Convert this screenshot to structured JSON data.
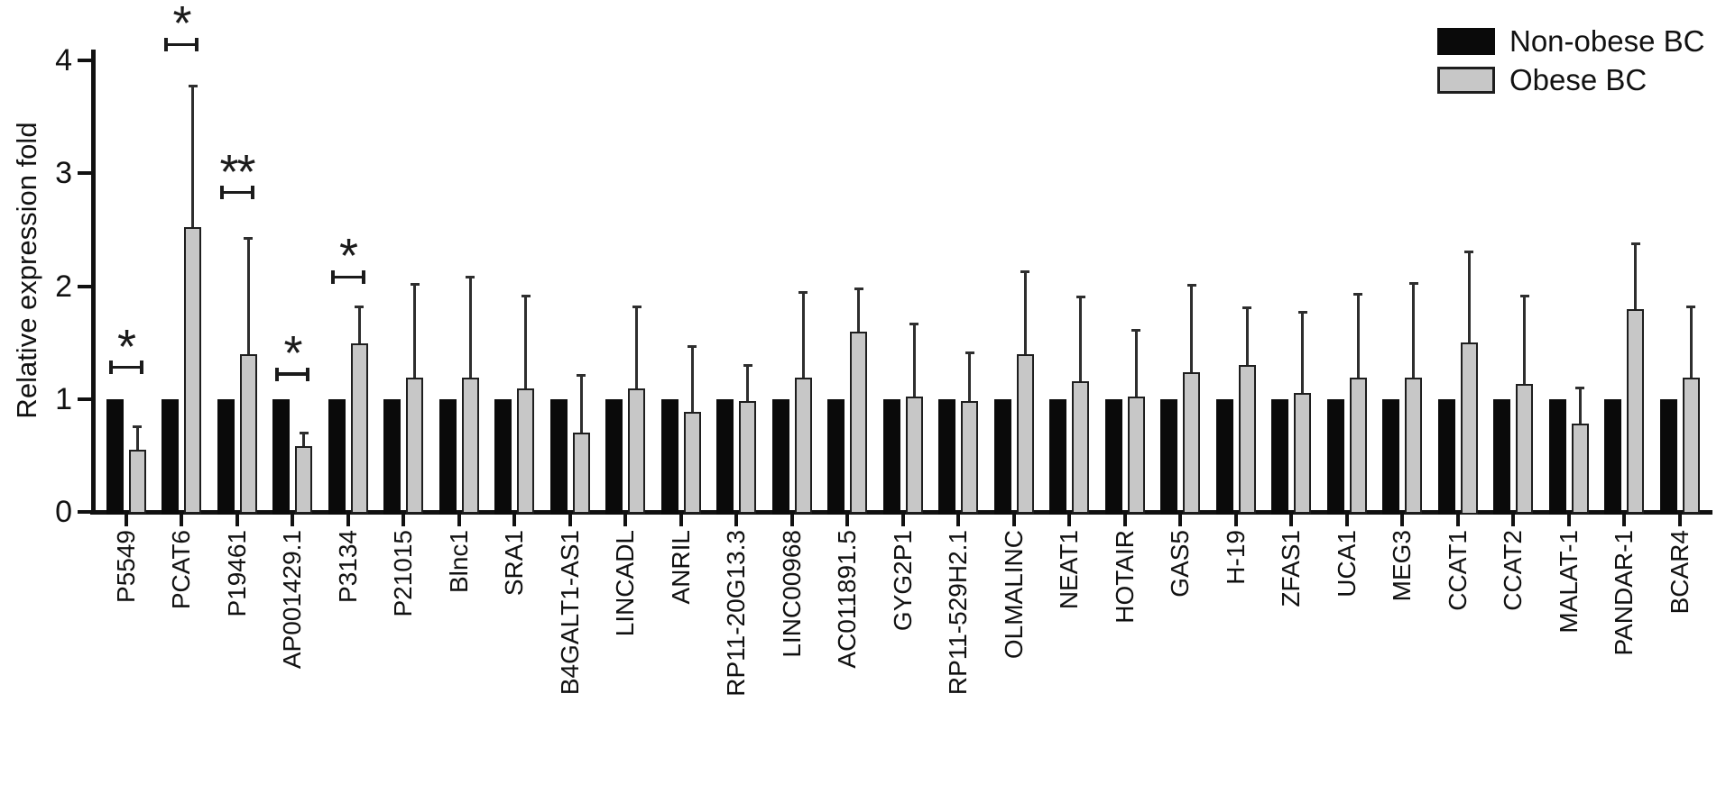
{
  "legend": {
    "items": [
      {
        "label": "Non-obese BC",
        "swatch_fill": "#0a0a0a",
        "swatch_border": "#0a0a0a"
      },
      {
        "label": "Obese BC",
        "swatch_fill": "#c7c7c7",
        "swatch_border": "#1e1e1e"
      }
    ]
  },
  "chart_data": {
    "type": "bar",
    "title": "",
    "xlabel": "",
    "ylabel": "Relative expression fold",
    "ylim": [
      0,
      4
    ],
    "y_ticks": [
      0,
      1,
      2,
      3,
      4
    ],
    "grid": false,
    "legend_position": "top-right",
    "error_bars": "upper only, on Obese BC series",
    "categories": [
      "P5549",
      "PCAT6",
      "P19461",
      "AP001429.1",
      "P3134",
      "P21015",
      "Blnc1",
      "SRA1",
      "B4GALT1-AS1",
      "LINCADL",
      "ANRIL",
      "RP11-20G13.3",
      "LINC00968",
      "AC011891.5",
      "GYG2P1",
      "RP11-529H2.1",
      "OLMALINC",
      "NEAT1",
      "HOTAIR",
      "GAS5",
      "H-19",
      "ZFAS1",
      "UCA1",
      "MEG3",
      "CCAT1",
      "CCAT2",
      "MALAT-1",
      "PANDAR-1",
      "BCAR4"
    ],
    "series": [
      {
        "name": "Non-obese BC",
        "color": "#0a0a0a",
        "values": [
          1,
          1,
          1,
          1,
          1,
          1,
          1,
          1,
          1,
          1,
          1,
          1,
          1,
          1,
          1,
          1,
          1,
          1,
          1,
          1,
          1,
          1,
          1,
          1,
          1,
          1,
          1,
          1,
          1
        ],
        "errors_up": [
          0,
          0,
          0,
          0,
          0,
          0,
          0,
          0,
          0,
          0,
          0,
          0,
          0,
          0,
          0,
          0,
          0,
          0,
          0,
          0,
          0,
          0,
          0,
          0,
          0,
          0,
          0,
          0,
          0
        ]
      },
      {
        "name": "Obese BC",
        "color": "#c7c7c7",
        "values": [
          0.55,
          2.52,
          1.4,
          0.58,
          1.49,
          1.19,
          1.19,
          1.09,
          0.7,
          1.09,
          0.89,
          0.98,
          1.19,
          1.6,
          1.02,
          0.98,
          1.4,
          1.16,
          1.02,
          1.24,
          1.3,
          1.05,
          1.19,
          1.19,
          1.5,
          1.13,
          0.78,
          1.8,
          1.19
        ],
        "errors_up": [
          0.21,
          1.26,
          1.03,
          0.12,
          0.33,
          0.83,
          0.89,
          0.83,
          0.51,
          0.73,
          0.58,
          0.32,
          0.76,
          0.38,
          0.65,
          0.43,
          0.73,
          0.75,
          0.59,
          0.77,
          0.51,
          0.72,
          0.74,
          0.84,
          0.81,
          0.79,
          0.32,
          0.58,
          0.63
        ]
      }
    ],
    "significance_markers": [
      {
        "category": "P5549",
        "symbol": "*",
        "bracket_height": 1.28
      },
      {
        "category": "PCAT6",
        "symbol": "*",
        "bracket_height": 4.14
      },
      {
        "category": "P19461",
        "symbol": "**",
        "bracket_height": 2.83
      },
      {
        "category": "AP001429.1",
        "symbol": "*",
        "bracket_height": 1.22
      },
      {
        "category": "P3134",
        "symbol": "*",
        "bracket_height": 2.08
      }
    ]
  }
}
